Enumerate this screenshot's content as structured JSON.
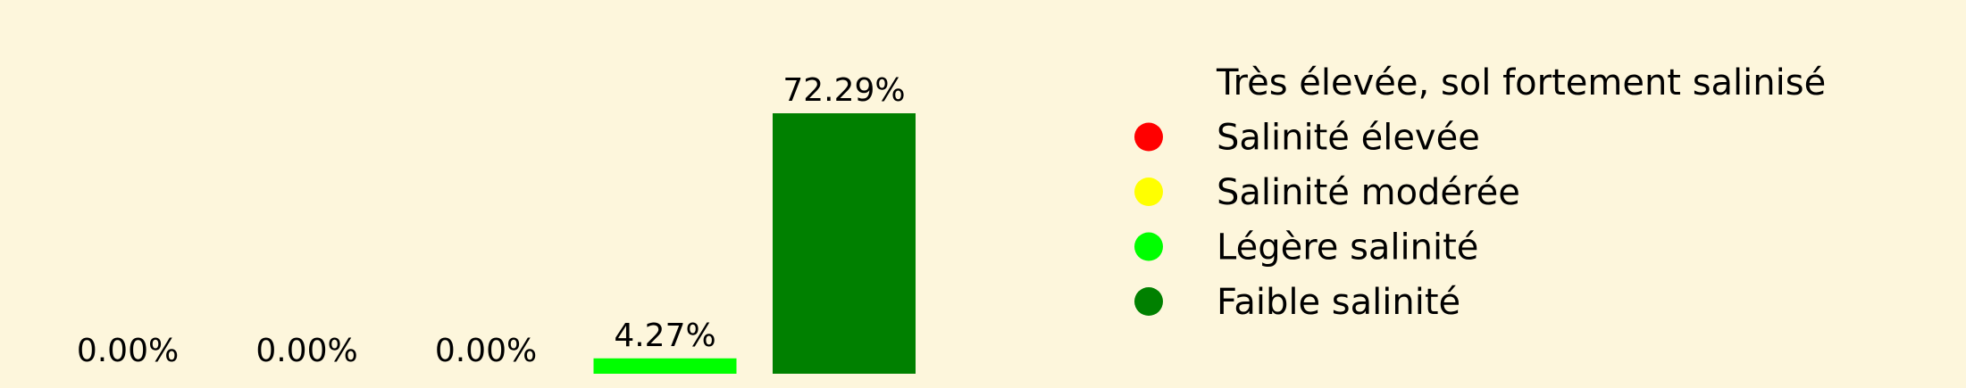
{
  "chart_data": {
    "type": "bar",
    "categories": [
      "Très élevée, sol fortement salinisé",
      "Salinité élevée",
      "Salinité modérée",
      "Légère salinité",
      "Faible salinité"
    ],
    "values": [
      0.0,
      0.0,
      0.0,
      4.27,
      72.29
    ],
    "value_labels": [
      "0.00%",
      "0.00%",
      "0.00%",
      "4.27%",
      "72.29%"
    ],
    "colors": [
      "#8b0000",
      "#ff0000",
      "#ffff00",
      "#00ff00",
      "#008000"
    ],
    "title": "",
    "xlabel": "",
    "ylabel": "",
    "ylim": [
      0,
      74
    ],
    "grid": false,
    "legend_placement": "right",
    "legend": [
      {
        "label": "Très élevée, sol fortement salinisé",
        "color": "#fdf6dc"
      },
      {
        "label": "Salinité élevée",
        "color": "#ff0000"
      },
      {
        "label": "Salinité modérée",
        "color": "#ffff00"
      },
      {
        "label": "Légère salinité",
        "color": "#00ff00"
      },
      {
        "label": "Faible salinité",
        "color": "#008000"
      }
    ]
  },
  "background_color": "#fdf6dc"
}
